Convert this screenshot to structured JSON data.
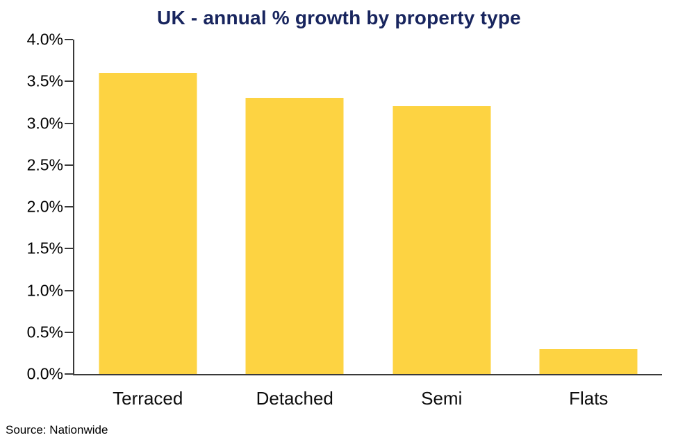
{
  "title": "UK - annual % growth by property type",
  "source_note": "Source: Nationwide",
  "colors": {
    "bar": "#FDD342",
    "title": "#18255E",
    "axis": "#3A3A3A"
  },
  "chart_data": {
    "type": "bar",
    "title": "UK - annual % growth by property type",
    "categories": [
      "Terraced",
      "Detached",
      "Semi",
      "Flats"
    ],
    "values": [
      3.6,
      3.3,
      3.2,
      0.3
    ],
    "xlabel": "",
    "ylabel": "",
    "ylim": [
      0,
      4
    ],
    "ytick_step": 0.5,
    "ytick_labels": [
      "4.0%",
      "3.5%",
      "3.0%",
      "2.5%",
      "2.0%",
      "1.5%",
      "1.0%",
      "0.5%",
      "0.0%"
    ],
    "grid": false,
    "legend": false,
    "bar_color": "#FDD342",
    "source": "Source: Nationwide"
  }
}
